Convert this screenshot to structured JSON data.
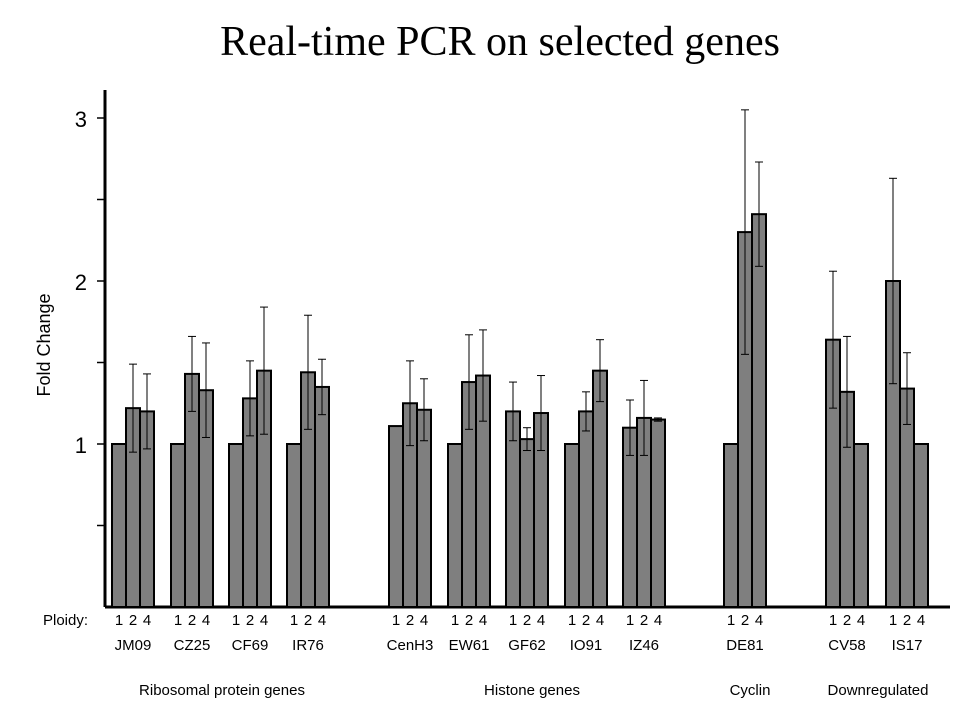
{
  "title": "Real-time PCR on selected genes",
  "chart_data": {
    "type": "bar",
    "title": "Real-time PCR on selected genes",
    "ylabel": "Fold Change",
    "ylim": [
      0,
      3.2
    ],
    "yticks": [
      1,
      2,
      3
    ],
    "ploidy_label": "Ploidy:",
    "ploidy_levels": [
      "1",
      "2",
      "4"
    ],
    "bar_color": "#7f7f7f",
    "groups": [
      {
        "gene": "JM09",
        "values": [
          1.0,
          1.22,
          1.2
        ],
        "errors": [
          0,
          0.27,
          0.23
        ]
      },
      {
        "gene": "CZ25",
        "values": [
          1.0,
          1.43,
          1.33
        ],
        "errors": [
          0,
          0.23,
          0.29
        ]
      },
      {
        "gene": "CF69",
        "values": [
          1.0,
          1.28,
          1.45
        ],
        "errors": [
          0,
          0.23,
          0.39
        ]
      },
      {
        "gene": "IR76",
        "values": [
          1.0,
          1.44,
          1.35
        ],
        "errors": [
          0,
          0.35,
          0.17
        ]
      },
      {
        "gene": "CenH3",
        "values": [
          1.11,
          1.25,
          1.21
        ],
        "errors": [
          0,
          0.26,
          0.19
        ]
      },
      {
        "gene": "EW61",
        "values": [
          1.0,
          1.38,
          1.42
        ],
        "errors": [
          0,
          0.29,
          0.28
        ]
      },
      {
        "gene": "GF62",
        "values": [
          1.2,
          1.03,
          1.19
        ],
        "errors": [
          0.18,
          0.07,
          0.23
        ]
      },
      {
        "gene": "IO91",
        "values": [
          1.0,
          1.2,
          1.45
        ],
        "errors": [
          0,
          0.12,
          0.19
        ]
      },
      {
        "gene": "IZ46",
        "values": [
          1.1,
          1.16,
          1.15
        ],
        "errors": [
          0.17,
          0.23,
          0.01
        ]
      },
      {
        "gene": "DE81",
        "values": [
          1.0,
          2.3,
          2.41
        ],
        "errors": [
          0,
          0.75,
          0.32
        ]
      },
      {
        "gene": "CV58",
        "values": [
          1.64,
          1.32,
          1.0
        ],
        "errors": [
          0.42,
          0.34,
          0
        ]
      },
      {
        "gene": "IS17",
        "values": [
          2.0,
          1.34,
          1.0
        ],
        "errors": [
          0.63,
          0.22,
          0
        ]
      }
    ],
    "categories": [
      {
        "name": "Ribosomal protein genes",
        "genes": [
          "JM09",
          "CZ25",
          "CF69",
          "IR76"
        ]
      },
      {
        "name": "Histone genes",
        "genes": [
          "CenH3",
          "EW61",
          "GF62",
          "IO91",
          "IZ46"
        ]
      },
      {
        "name": "Cyclin",
        "genes": [
          "DE81"
        ]
      },
      {
        "name": "Downregulated",
        "genes": [
          "CV58",
          "IS17"
        ]
      }
    ],
    "grid": false,
    "legend": "none"
  }
}
